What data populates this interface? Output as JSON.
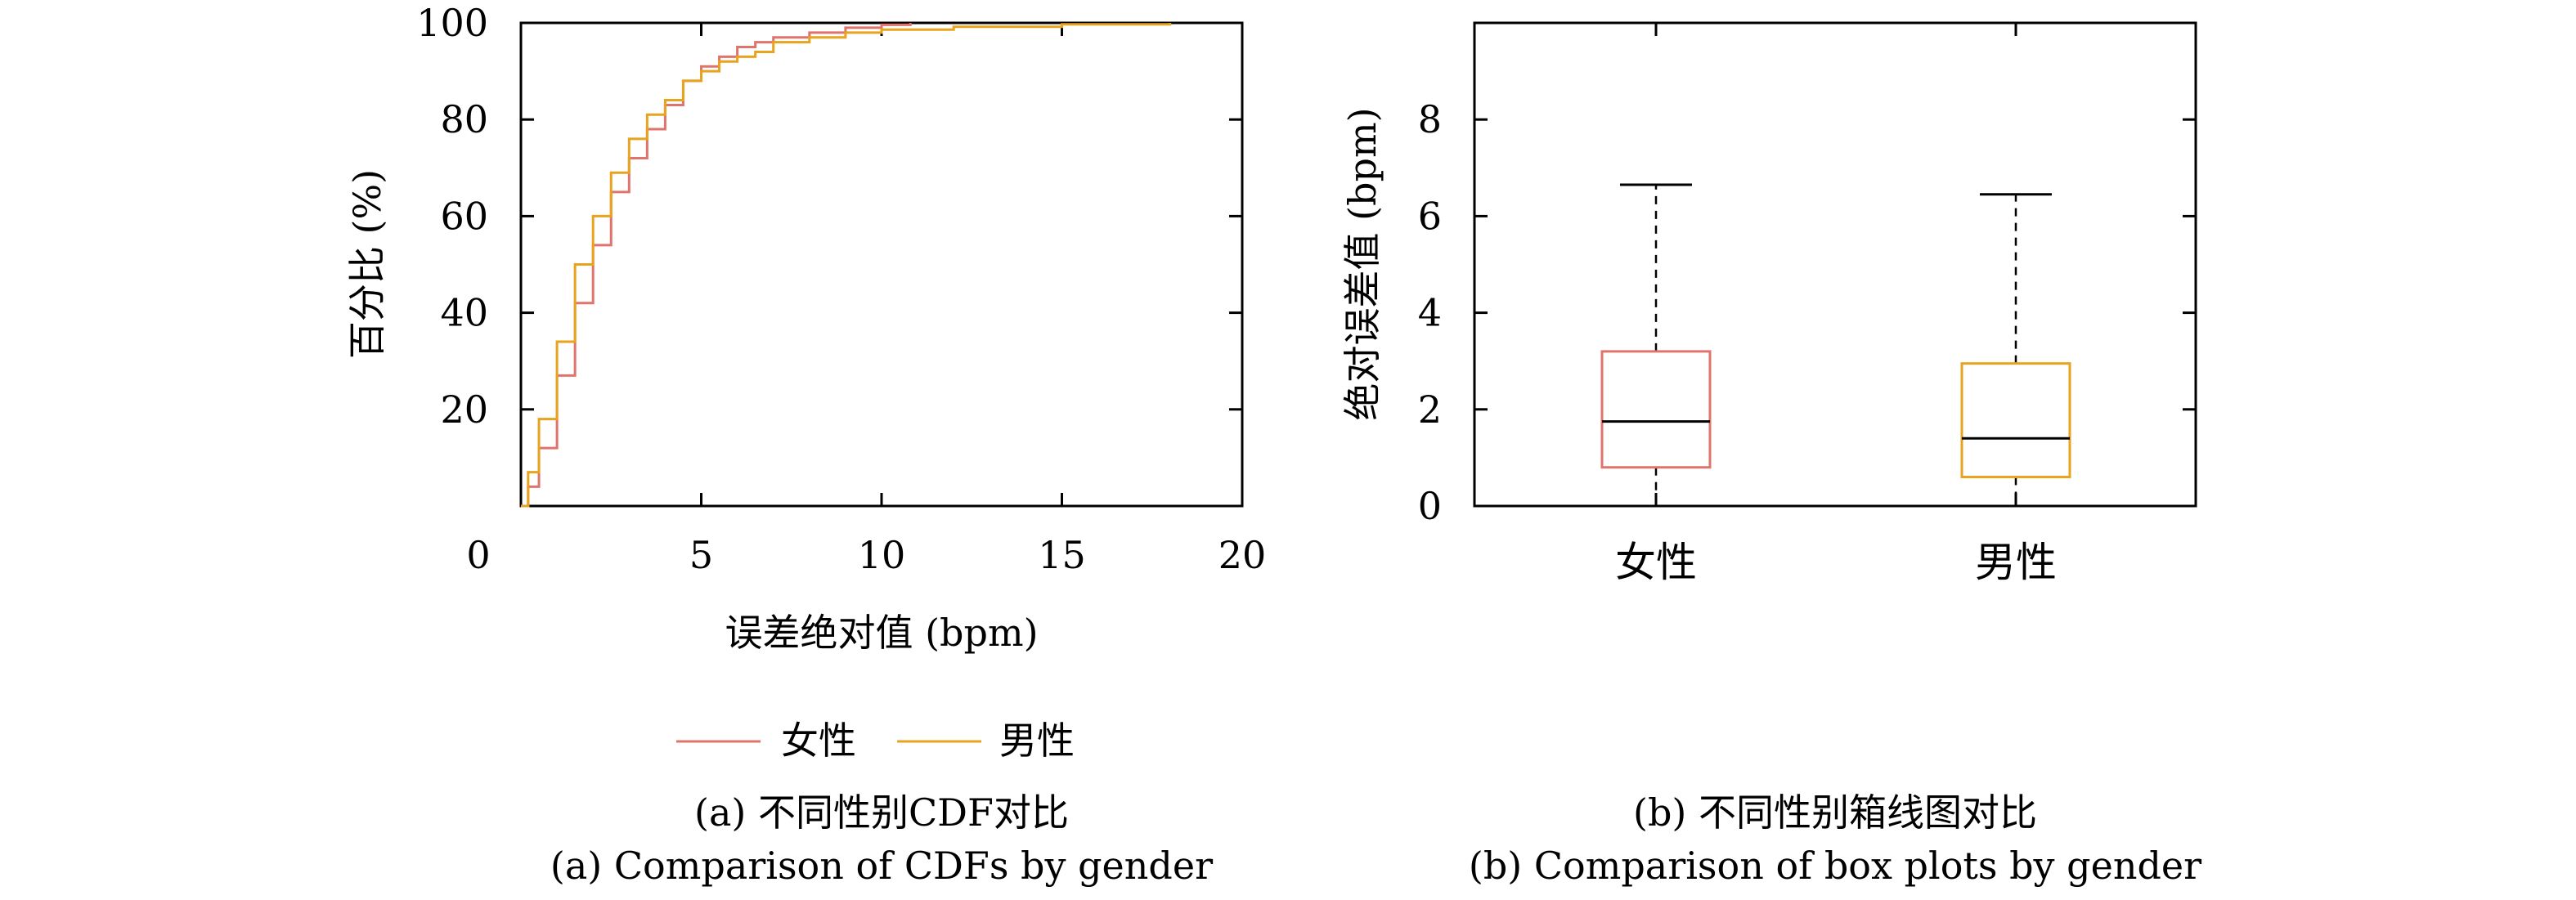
{
  "colors": {
    "female": "#e0736c",
    "male": "#e8a31f",
    "axis": "#000000"
  },
  "chart_data": [
    {
      "type": "line",
      "subtype": "cdf",
      "xlabel": "误差绝对值 (bpm)",
      "ylabel": "百分比 (%)",
      "xlim": [
        0,
        20
      ],
      "ylim": [
        0,
        100
      ],
      "x_ticks": [
        "0",
        "5",
        "10",
        "15",
        "20"
      ],
      "y_ticks": [
        "20",
        "40",
        "60",
        "80",
        "100"
      ],
      "legend_position": "bottom-center",
      "series": [
        {
          "name": "女性",
          "color": "#e0736c",
          "x": [
            0,
            0.2,
            0.5,
            1.0,
            1.5,
            2.0,
            2.5,
            3.0,
            3.5,
            4.0,
            4.5,
            5.0,
            5.5,
            6.0,
            6.5,
            7.0,
            8.0,
            9.0,
            10.0,
            10.8
          ],
          "y": [
            0,
            4,
            12,
            27,
            42,
            54,
            65,
            72,
            78,
            83,
            88,
            91,
            93,
            95,
            96,
            97,
            98,
            99,
            99.6,
            100
          ]
        },
        {
          "name": "男性",
          "color": "#e8a31f",
          "x": [
            0,
            0.2,
            0.5,
            1.0,
            1.5,
            2.0,
            2.5,
            3.0,
            3.5,
            4.0,
            4.5,
            5.0,
            5.5,
            6.0,
            6.5,
            7.0,
            8.0,
            9.0,
            10.0,
            12.0,
            15.0,
            18.0
          ],
          "y": [
            0,
            7,
            18,
            34,
            50,
            60,
            69,
            76,
            81,
            84,
            88,
            90,
            92,
            93,
            94,
            96,
            97,
            98,
            98.6,
            99.2,
            99.7,
            100
          ]
        }
      ],
      "legend": [
        "女性",
        "男性"
      ],
      "caption_cn": "(a) 不同性别CDF对比",
      "caption_en": "(a) Comparison of CDFs by gender"
    },
    {
      "type": "box",
      "xlabel": "",
      "ylabel": "绝对误差值 (bpm)",
      "ylim": [
        0,
        10
      ],
      "y_ticks": [
        "0",
        "2",
        "4",
        "6",
        "8"
      ],
      "categories": [
        "女性",
        "男性"
      ],
      "boxes": [
        {
          "category": "女性",
          "color": "#e0736c",
          "whisker_low": 0,
          "q1": 0.8,
          "median": 1.75,
          "q3": 3.2,
          "whisker_high": 6.65
        },
        {
          "category": "男性",
          "color": "#e8a31f",
          "whisker_low": 0,
          "q1": 0.6,
          "median": 1.4,
          "q3": 2.95,
          "whisker_high": 6.45
        }
      ],
      "caption_cn": "(b) 不同性别箱线图对比",
      "caption_en": "(b) Comparison of box plots by gender"
    }
  ]
}
